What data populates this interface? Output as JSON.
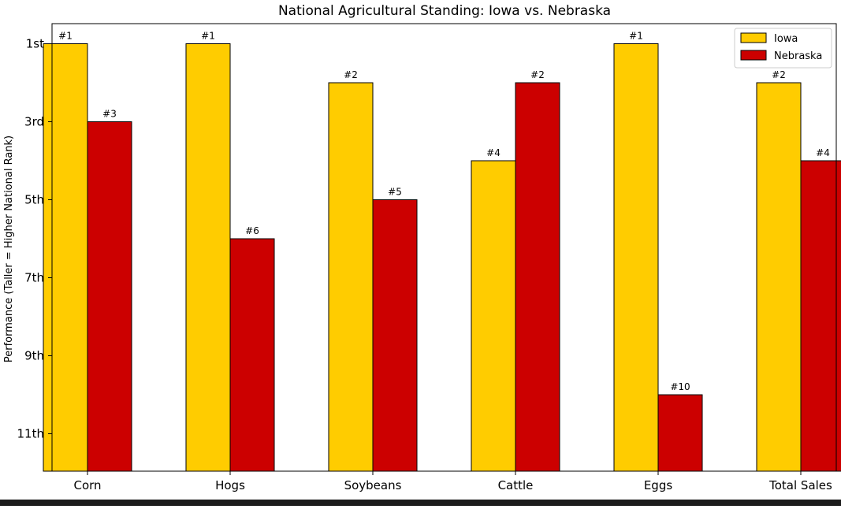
{
  "chart_data": {
    "type": "bar",
    "title": "National Agricultural Standing: Iowa vs. Nebraska",
    "xlabel": "",
    "ylabel": "Performance (Taller = Higher National Rank)",
    "categories": [
      "Corn",
      "Hogs",
      "Soybeans",
      "Cattle",
      "Eggs",
      "Total Sales"
    ],
    "series": [
      {
        "name": "Iowa",
        "color": "#FFCC00",
        "values": [
          1,
          1,
          2,
          4,
          1,
          2
        ],
        "labels": [
          "#1",
          "#1",
          "#2",
          "#4",
          "#1",
          "#2"
        ]
      },
      {
        "name": "Nebraska",
        "color": "#CC0000",
        "values": [
          3,
          6,
          5,
          2,
          10,
          4
        ],
        "labels": [
          "#3",
          "#6",
          "#5",
          "#2",
          "#10",
          "#4"
        ]
      }
    ],
    "yticks": [
      {
        "rank": 1,
        "label": "1st"
      },
      {
        "rank": 3,
        "label": "3rd"
      },
      {
        "rank": 5,
        "label": "5th"
      },
      {
        "rank": 7,
        "label": "7th"
      },
      {
        "rank": 9,
        "label": "9th"
      },
      {
        "rank": 11,
        "label": "11th"
      }
    ],
    "ylim": [
      12,
      1
    ],
    "y_inverted": true,
    "legend_position": "top-right",
    "grid": false
  }
}
